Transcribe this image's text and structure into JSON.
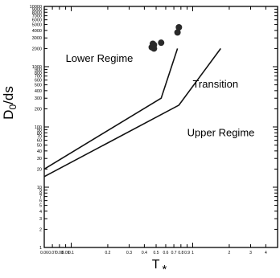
{
  "chart_data": {
    "type": "scatter",
    "title": "",
    "ylabel_main": "D",
    "ylabel_sub": "0",
    "ylabel_tail": "/ds",
    "xlabel_main": "T",
    "xlabel_sub": "*",
    "xscale": "log",
    "yscale": "log",
    "xlim": [
      0.06,
      5
    ],
    "ylim": [
      1,
      10000
    ],
    "grid": false,
    "y_ticks": [
      {
        "v": 1,
        "label": "1"
      },
      {
        "v": 2,
        "label": "2"
      },
      {
        "v": 3,
        "label": "3"
      },
      {
        "v": 4,
        "label": "4"
      },
      {
        "v": 5,
        "label": "5"
      },
      {
        "v": 6,
        "label": "6"
      },
      {
        "v": 7,
        "label": "7"
      },
      {
        "v": 8,
        "label": "8"
      },
      {
        "v": 9,
        "label": "9"
      },
      {
        "v": 10,
        "label": "10"
      },
      {
        "v": 20,
        "label": "20"
      },
      {
        "v": 30,
        "label": "30"
      },
      {
        "v": 40,
        "label": "40"
      },
      {
        "v": 50,
        "label": "50"
      },
      {
        "v": 60,
        "label": "60"
      },
      {
        "v": 70,
        "label": "70"
      },
      {
        "v": 80,
        "label": "80"
      },
      {
        "v": 90,
        "label": "90"
      },
      {
        "v": 100,
        "label": "100"
      },
      {
        "v": 200,
        "label": "200"
      },
      {
        "v": 300,
        "label": "300"
      },
      {
        "v": 400,
        "label": "400"
      },
      {
        "v": 500,
        "label": "500"
      },
      {
        "v": 600,
        "label": "600"
      },
      {
        "v": 700,
        "label": "700"
      },
      {
        "v": 800,
        "label": "800"
      },
      {
        "v": 900,
        "label": "900"
      },
      {
        "v": 1000,
        "label": "1000"
      },
      {
        "v": 2000,
        "label": "2000"
      },
      {
        "v": 3000,
        "label": "3000"
      },
      {
        "v": 4000,
        "label": "4000"
      },
      {
        "v": 5000,
        "label": "5000"
      },
      {
        "v": 6000,
        "label": "6000"
      },
      {
        "v": 7000,
        "label": "7000"
      },
      {
        "v": 8000,
        "label": "8000"
      },
      {
        "v": 9000,
        "label": "9000"
      },
      {
        "v": 10000,
        "label": "10000"
      }
    ],
    "x_ticks": [
      {
        "v": 0.06,
        "label": "0.06"
      },
      {
        "v": 0.07,
        "label": "0.07"
      },
      {
        "v": 0.08,
        "label": "0.08"
      },
      {
        "v": 0.09,
        "label": "0.09"
      },
      {
        "v": 0.1,
        "label": "0.1"
      },
      {
        "v": 0.2,
        "label": "0.2"
      },
      {
        "v": 0.3,
        "label": "0.3"
      },
      {
        "v": 0.4,
        "label": "0.4"
      },
      {
        "v": 0.5,
        "label": "0.5"
      },
      {
        "v": 0.6,
        "label": "0.6"
      },
      {
        "v": 0.7,
        "label": "0.7"
      },
      {
        "v": 0.8,
        "label": "0.8"
      },
      {
        "v": 0.9,
        "label": "0.9"
      },
      {
        "v": 1,
        "label": "1"
      },
      {
        "v": 2,
        "label": "2"
      },
      {
        "v": 3,
        "label": "3"
      },
      {
        "v": 4,
        "label": "4"
      }
    ],
    "boundaries": [
      {
        "name": "lower-boundary",
        "points": [
          [
            0.06,
            20
          ],
          [
            0.55,
            300
          ],
          [
            0.75,
            2000
          ]
        ]
      },
      {
        "name": "upper-boundary",
        "points": [
          [
            0.06,
            15
          ],
          [
            0.77,
            230
          ],
          [
            1.7,
            2000
          ]
        ]
      }
    ],
    "points": [
      {
        "x": 0.46,
        "y": 2100
      },
      {
        "x": 0.48,
        "y": 2300
      },
      {
        "x": 0.47,
        "y": 2400
      },
      {
        "x": 0.55,
        "y": 2500
      },
      {
        "x": 0.48,
        "y": 2000
      },
      {
        "x": 0.75,
        "y": 3700
      },
      {
        "x": 0.77,
        "y": 4500
      }
    ],
    "annotations": [
      {
        "text": "Lower Regime",
        "x": 0.09,
        "y": 1200
      },
      {
        "text": "Transition",
        "x": 1.0,
        "y": 450
      },
      {
        "text": "Upper Regime",
        "x": 0.9,
        "y": 70
      }
    ]
  }
}
